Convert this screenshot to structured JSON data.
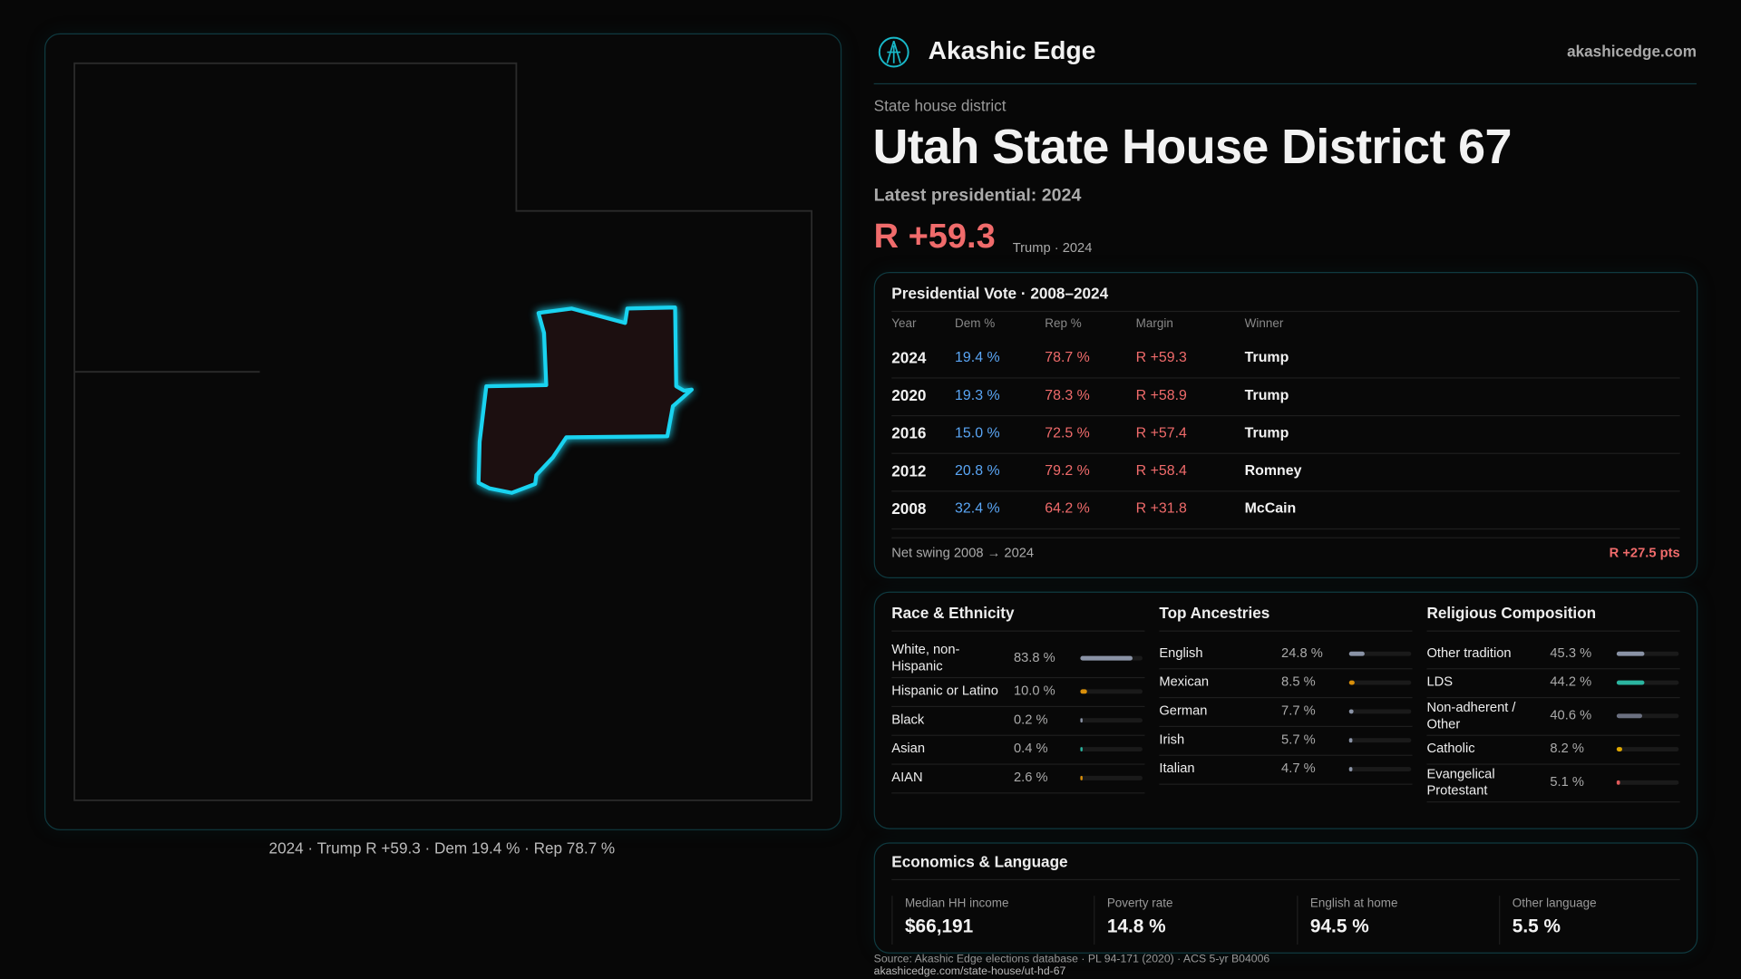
{
  "brand": {
    "name": "Akashic Edge",
    "site": "akashicedge.com"
  },
  "map": {
    "caption": "2024 · Trump R +59.3 · Dem 19.4 % · Rep 78.7 %",
    "outline_color": "#19d3f0",
    "fill_color": "#1c0f10"
  },
  "header": {
    "kicker": "State house district",
    "title": "Utah State House District 67",
    "latest": "Latest presidential: 2024",
    "margin": "R +59.3",
    "margin_sub": "Trump · 2024"
  },
  "presidential": {
    "title": "Presidential Vote · 2008–2024",
    "columns": [
      "Year",
      "Dem %",
      "Rep %",
      "Margin",
      "Winner"
    ],
    "rows": [
      {
        "year": "2024",
        "dem": "19.4 %",
        "rep": "78.7 %",
        "margin": "R +59.3",
        "winner": "Trump"
      },
      {
        "year": "2020",
        "dem": "19.3 %",
        "rep": "78.3 %",
        "margin": "R +58.9",
        "winner": "Trump"
      },
      {
        "year": "2016",
        "dem": "15.0 %",
        "rep": "72.5 %",
        "margin": "R +57.4",
        "winner": "Trump"
      },
      {
        "year": "2012",
        "dem": "20.8 %",
        "rep": "79.2 %",
        "margin": "R +58.4",
        "winner": "Romney"
      },
      {
        "year": "2008",
        "dem": "32.4 %",
        "rep": "64.2 %",
        "margin": "R +31.8",
        "winner": "McCain"
      }
    ],
    "swing_label": "Net swing 2008 → 2024",
    "swing_value": "R +27.5 pts"
  },
  "race": {
    "title": "Race & Ethnicity",
    "items": [
      {
        "label": "White, non-Hispanic",
        "value": "83.8 %",
        "pct": 83.8,
        "color": "#8a93a6"
      },
      {
        "label": "Hispanic or Latino",
        "value": "10.0 %",
        "pct": 10.0,
        "color": "#d98f0a"
      },
      {
        "label": "Black",
        "value": "0.2 %",
        "pct": 0.2,
        "color": "#8a93a6"
      },
      {
        "label": "Asian",
        "value": "0.4 %",
        "pct": 0.4,
        "color": "#2bb5a0"
      },
      {
        "label": "AIAN",
        "value": "2.6 %",
        "pct": 2.6,
        "color": "#d98f0a"
      }
    ]
  },
  "ancestry": {
    "title": "Top Ancestries",
    "items": [
      {
        "label": "English",
        "value": "24.8 %",
        "pct": 24.8,
        "color": "#8a93a6"
      },
      {
        "label": "Mexican",
        "value": "8.5 %",
        "pct": 8.5,
        "color": "#d98f0a"
      },
      {
        "label": "German",
        "value": "7.7 %",
        "pct": 7.7,
        "color": "#8a93a6"
      },
      {
        "label": "Irish",
        "value": "5.7 %",
        "pct": 5.7,
        "color": "#8a93a6"
      },
      {
        "label": "Italian",
        "value": "4.7 %",
        "pct": 4.7,
        "color": "#8a93a6"
      }
    ]
  },
  "religion": {
    "title": "Religious Composition",
    "items": [
      {
        "label": "Other tradition",
        "value": "45.3 %",
        "pct": 45.3,
        "color": "#8a93a6"
      },
      {
        "label": "LDS",
        "value": "44.2 %",
        "pct": 44.2,
        "color": "#2bb5a0"
      },
      {
        "label": "Non-adherent / Other",
        "value": "40.6 %",
        "pct": 40.6,
        "color": "#6b7080"
      },
      {
        "label": "Catholic",
        "value": "8.2 %",
        "pct": 8.2,
        "color": "#e0a800"
      },
      {
        "label": "Evangelical Protestant",
        "value": "5.1 %",
        "pct": 5.1,
        "color": "#e05a5a"
      }
    ]
  },
  "economics": {
    "title": "Economics & Language",
    "items": [
      {
        "label": "Median HH income",
        "value": "$66,191"
      },
      {
        "label": "Poverty rate",
        "value": "14.8 %"
      },
      {
        "label": "English at home",
        "value": "94.5 %"
      },
      {
        "label": "Other language",
        "value": "5.5 %"
      }
    ]
  },
  "footer": {
    "source": "Source: Akashic Edge elections database · PL 94-171 (2020) · ACS 5-yr B04006",
    "url": "akashicedge.com/state-house/ut-hd-67"
  }
}
